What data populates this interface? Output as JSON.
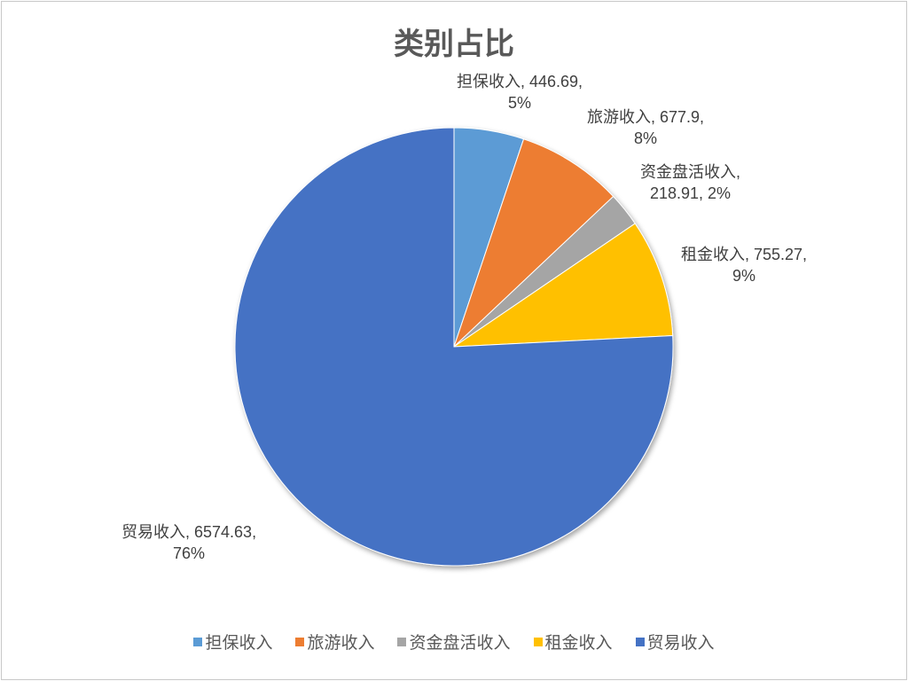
{
  "chart_data": {
    "type": "pie",
    "title": "类别占比",
    "start_angle": "12 o'clock, clockwise",
    "legend_position": "bottom",
    "slices": [
      {
        "name": "担保收入",
        "value": 446.69,
        "percent": "5%",
        "color": "#5B9BD5"
      },
      {
        "name": "旅游收入",
        "value": 677.9,
        "percent": "8%",
        "color": "#ED7D31"
      },
      {
        "name": "资金盘活收入",
        "value": 218.91,
        "percent": "2%",
        "color": "#A5A5A5"
      },
      {
        "name": "租金收入",
        "value": 755.27,
        "percent": "9%",
        "color": "#FFC000"
      },
      {
        "name": "贸易收入",
        "value": 6574.63,
        "percent": "76%",
        "color": "#4472C4"
      }
    ]
  }
}
